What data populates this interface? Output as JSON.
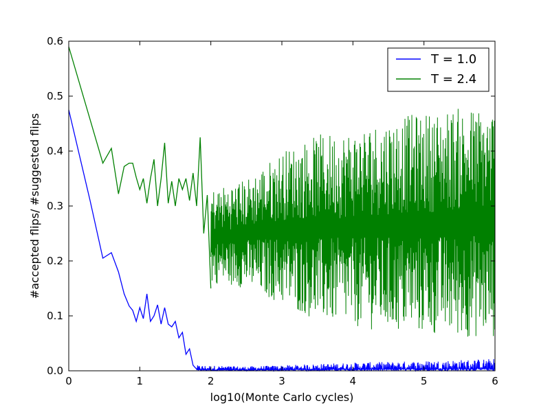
{
  "chart_data": {
    "type": "line",
    "title": "",
    "xlabel": "log10(Monte Carlo cycles)",
    "ylabel": "#accepted flips/ #suggested flips",
    "xlim": [
      0,
      6
    ],
    "ylim": [
      0.0,
      0.6
    ],
    "x_ticks": [
      "0",
      "1",
      "2",
      "3",
      "4",
      "5",
      "6"
    ],
    "y_ticks": [
      "0.0",
      "0.1",
      "0.2",
      "0.3",
      "0.4",
      "0.5",
      "0.6"
    ],
    "grid": false,
    "legend_position": "top-right",
    "series": [
      {
        "name": "T = 1.0",
        "color": "#0000ff",
        "x": [
          0.0,
          0.3,
          0.48,
          0.6,
          0.7,
          0.78,
          0.85,
          0.9,
          0.95,
          1.0,
          1.05,
          1.1,
          1.15,
          1.2,
          1.25,
          1.3,
          1.35,
          1.4,
          1.45,
          1.5,
          1.55,
          1.6,
          1.65,
          1.7,
          1.75,
          1.8
        ],
        "values": [
          0.475,
          0.31,
          0.205,
          0.215,
          0.18,
          0.14,
          0.118,
          0.11,
          0.09,
          0.115,
          0.095,
          0.14,
          0.09,
          0.1,
          0.12,
          0.085,
          0.115,
          0.085,
          0.08,
          0.09,
          0.06,
          0.07,
          0.03,
          0.04,
          0.01,
          0.003
        ],
        "band": {
          "x": [
            1.8,
            2.5,
            3.0,
            4.0,
            5.0,
            6.0
          ],
          "low": [
            0.0,
            0.0,
            0.0,
            0.0,
            0.0,
            0.0
          ],
          "high": [
            0.01,
            0.008,
            0.01,
            0.015,
            0.018,
            0.022
          ]
        }
      },
      {
        "name": "T = 2.4",
        "color": "#008000",
        "x": [
          0.0,
          0.48,
          0.6,
          0.7,
          0.78,
          0.85,
          0.9,
          0.95,
          1.0,
          1.05,
          1.1,
          1.15,
          1.2,
          1.25,
          1.3,
          1.35,
          1.4,
          1.45,
          1.5,
          1.55,
          1.6,
          1.65,
          1.7,
          1.75,
          1.8,
          1.85,
          1.9,
          1.95,
          2.0
        ],
        "values": [
          0.59,
          0.378,
          0.405,
          0.322,
          0.372,
          0.378,
          0.378,
          0.352,
          0.33,
          0.35,
          0.305,
          0.35,
          0.385,
          0.3,
          0.35,
          0.415,
          0.305,
          0.345,
          0.3,
          0.35,
          0.33,
          0.35,
          0.31,
          0.36,
          0.3,
          0.425,
          0.25,
          0.32,
          0.15
        ],
        "band": {
          "x": [
            2.0,
            2.5,
            3.0,
            3.5,
            4.0,
            4.5,
            5.0,
            5.5,
            6.0
          ],
          "low": [
            0.16,
            0.15,
            0.12,
            0.09,
            0.08,
            0.07,
            0.065,
            0.06,
            0.06
          ],
          "high": [
            0.33,
            0.35,
            0.4,
            0.43,
            0.44,
            0.46,
            0.47,
            0.48,
            0.48
          ]
        }
      }
    ]
  }
}
